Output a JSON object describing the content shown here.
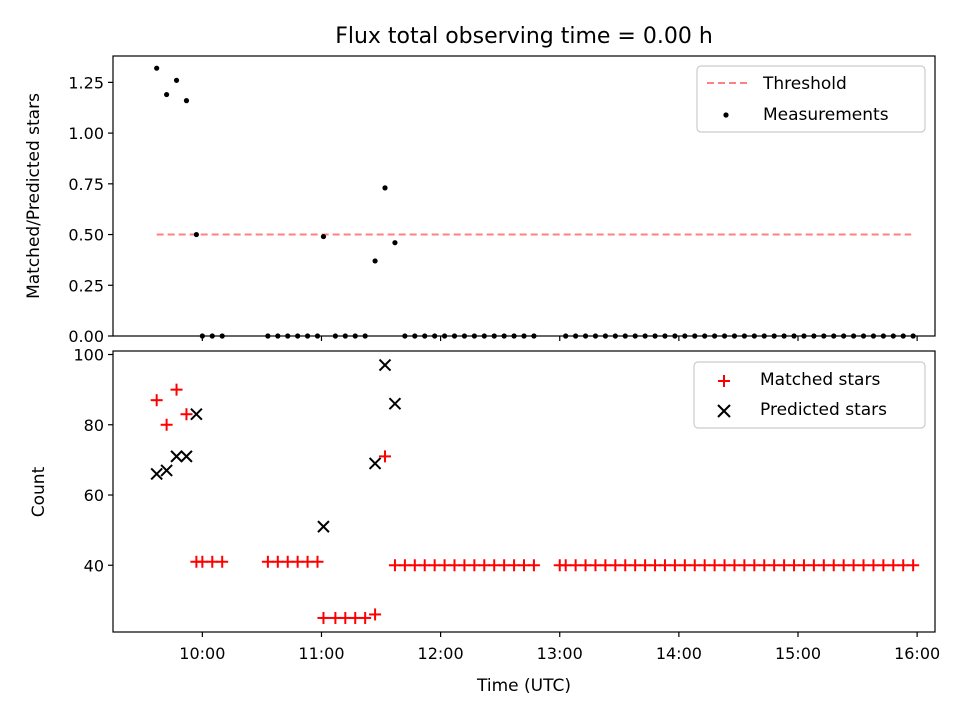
{
  "chart_data": [
    {
      "type": "scatter",
      "title": "Flux total observing time = 0.00 h",
      "ylabel": "Matched/Predicted stars",
      "xlabel": "",
      "xlim": [
        "09:15",
        "16:09"
      ],
      "ylim": [
        0,
        1.38
      ],
      "yticks": [
        0.0,
        0.25,
        0.5,
        0.75,
        1.0,
        1.25
      ],
      "yticklabels": [
        "0.00",
        "0.25",
        "0.50",
        "0.75",
        "1.00",
        "1.25"
      ],
      "grid": false,
      "legend": "top-right",
      "series": [
        {
          "name": "Threshold",
          "type": "line",
          "style": "dashed",
          "color": "#ff8080",
          "x": [
            "09:37",
            "15:57"
          ],
          "y": [
            0.5,
            0.5
          ]
        },
        {
          "name": "Measurements",
          "type": "scatter",
          "marker": "dot",
          "color": "#000000",
          "x": [
            "09:37",
            "09:42",
            "09:47",
            "09:52",
            "09:57",
            "10:00",
            "10:05",
            "10:10",
            "10:33",
            "10:38",
            "10:43",
            "10:48",
            "10:53",
            "10:58",
            "11:01",
            "11:07",
            "11:12",
            "11:17",
            "11:22",
            "11:27",
            "11:32",
            "11:37",
            "11:42",
            "11:47",
            "11:52",
            "11:57",
            "12:02",
            "12:07",
            "12:12",
            "12:17",
            "12:22",
            "12:27",
            "12:32",
            "12:37",
            "12:42",
            "12:47",
            "13:03",
            "13:08",
            "13:13",
            "13:18",
            "13:23",
            "13:28",
            "13:33",
            "13:38",
            "13:43",
            "13:48",
            "13:53",
            "13:58",
            "14:03",
            "14:08",
            "14:13",
            "14:18",
            "14:23",
            "14:28",
            "14:33",
            "14:38",
            "14:43",
            "14:48",
            "14:53",
            "14:58",
            "15:03",
            "15:08",
            "15:13",
            "15:18",
            "15:23",
            "15:28",
            "15:33",
            "15:38",
            "15:43",
            "15:48",
            "15:53",
            "15:58"
          ],
          "y": [
            1.32,
            1.19,
            1.26,
            1.16,
            0.5,
            0,
            0,
            0,
            0,
            0,
            0,
            0,
            0,
            0,
            0.49,
            0,
            0,
            0,
            0,
            0.37,
            0.73,
            0.46,
            0,
            0,
            0,
            0,
            0,
            0,
            0,
            0,
            0,
            0,
            0,
            0,
            0,
            0,
            0,
            0,
            0,
            0,
            0,
            0,
            0,
            0,
            0,
            0,
            0,
            0,
            0,
            0,
            0,
            0,
            0,
            0,
            0,
            0,
            0,
            0,
            0,
            0,
            0,
            0,
            0,
            0,
            0,
            0,
            0,
            0,
            0,
            0,
            0,
            0
          ]
        }
      ]
    },
    {
      "type": "scatter",
      "title": "",
      "ylabel": "Count",
      "xlabel": "Time (UTC)",
      "xlim": [
        "09:15",
        "16:09"
      ],
      "ylim": [
        21,
        101
      ],
      "yticks": [
        40,
        60,
        80,
        100
      ],
      "yticklabels": [
        "40",
        "60",
        "80",
        "100"
      ],
      "xticks": [
        "10:00",
        "11:00",
        "12:00",
        "13:00",
        "14:00",
        "15:00",
        "16:00"
      ],
      "xticklabels": [
        "10:00",
        "11:00",
        "12:00",
        "13:00",
        "14:00",
        "15:00",
        "16:00"
      ],
      "grid": false,
      "legend": "top-right",
      "series": [
        {
          "name": "Matched stars",
          "type": "scatter",
          "marker": "plus",
          "color": "#ff0000",
          "x": [
            "09:37",
            "09:42",
            "09:47",
            "09:52",
            "09:57",
            "10:00",
            "10:05",
            "10:10",
            "10:33",
            "10:38",
            "10:43",
            "10:48",
            "10:53",
            "10:58",
            "11:01",
            "11:07",
            "11:12",
            "11:17",
            "11:22",
            "11:27",
            "11:32",
            "11:37",
            "11:42",
            "11:47",
            "11:52",
            "11:57",
            "12:02",
            "12:07",
            "12:12",
            "12:17",
            "12:22",
            "12:27",
            "12:32",
            "12:37",
            "12:42",
            "12:47",
            "13:00",
            "13:03",
            "13:08",
            "13:13",
            "13:18",
            "13:23",
            "13:28",
            "13:33",
            "13:38",
            "13:43",
            "13:48",
            "13:53",
            "13:58",
            "14:03",
            "14:08",
            "14:13",
            "14:18",
            "14:23",
            "14:28",
            "14:33",
            "14:38",
            "14:43",
            "14:48",
            "14:53",
            "14:58",
            "15:03",
            "15:08",
            "15:13",
            "15:18",
            "15:23",
            "15:28",
            "15:33",
            "15:38",
            "15:43",
            "15:48",
            "15:53",
            "15:58"
          ],
          "y": [
            87,
            80,
            90,
            83,
            41,
            41,
            41,
            41,
            41,
            41,
            41,
            41,
            41,
            41,
            25,
            25,
            25,
            25,
            25,
            26,
            71,
            40,
            40,
            40,
            40,
            40,
            40,
            40,
            40,
            40,
            40,
            40,
            40,
            40,
            40,
            40,
            40,
            40,
            40,
            40,
            40,
            40,
            40,
            40,
            40,
            40,
            40,
            40,
            40,
            40,
            40,
            40,
            40,
            40,
            40,
            40,
            40,
            40,
            40,
            40,
            40,
            40,
            40,
            40,
            40,
            40,
            40,
            40,
            40,
            40,
            40,
            40,
            40
          ]
        },
        {
          "name": "Predicted stars",
          "type": "scatter",
          "marker": "cross",
          "color": "#000000",
          "x": [
            "09:37",
            "09:42",
            "09:47",
            "09:52",
            "09:57",
            "11:01",
            "11:27",
            "11:32",
            "11:37"
          ],
          "y": [
            66,
            67,
            71,
            71,
            83,
            51,
            69,
            97,
            86
          ]
        }
      ]
    }
  ]
}
